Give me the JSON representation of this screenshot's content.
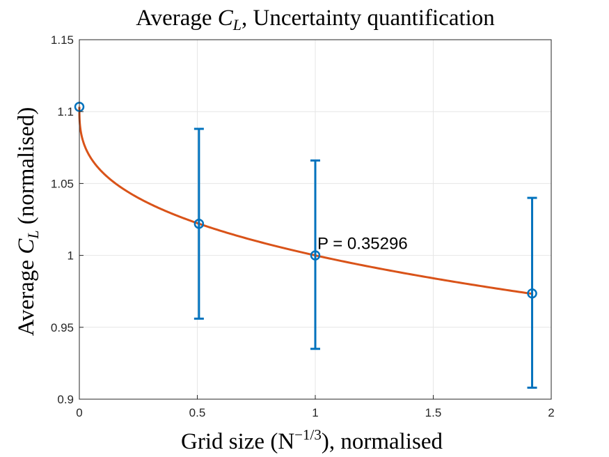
{
  "chart_data": {
    "type": "scatter",
    "title": {
      "prefix": "Average ",
      "var": "C",
      "sub": "L",
      "suffix": ", Uncertainty quantification"
    },
    "xlabel": {
      "prefix": "Grid size (N",
      "sup": "−1/3",
      "suffix": "), normalised"
    },
    "ylabel": {
      "prefix": "Average ",
      "var": "C",
      "sub": "L",
      "suffix": " (normalised)"
    },
    "xlim": [
      0,
      2
    ],
    "ylim": [
      0.9,
      1.15
    ],
    "x_ticks": [
      0,
      0.5,
      1,
      1.5,
      2
    ],
    "x_tick_labels": [
      "0",
      "0.5",
      "1",
      "1.5",
      "2"
    ],
    "y_ticks": [
      0.9,
      0.95,
      1,
      1.05,
      1.1,
      1.15
    ],
    "y_tick_labels": [
      "0.9",
      "0.95",
      "1",
      "1.05",
      "1.1",
      "1.15"
    ],
    "grid": true,
    "points": [
      {
        "x": 0,
        "y": 1.1033
      },
      {
        "x": 0.507,
        "y": 1.022,
        "err_low": 0.956,
        "err_high": 1.088
      },
      {
        "x": 1.0,
        "y": 1.0,
        "err_low": 0.935,
        "err_high": 1.066
      },
      {
        "x": 1.919,
        "y": 0.9735,
        "err_low": 0.908,
        "err_high": 1.04
      }
    ],
    "fit": {
      "model": "y = a + b*x^p",
      "a": 1.1033,
      "b": -0.1033,
      "p": 0.35296
    },
    "annotation": {
      "text": "P = 0.35296",
      "x": 1.0,
      "y": 1.0
    },
    "colors": {
      "points": "#0072BD",
      "fit": "#D95319",
      "grid": "#e6e6e6",
      "axis": "#262626"
    }
  }
}
